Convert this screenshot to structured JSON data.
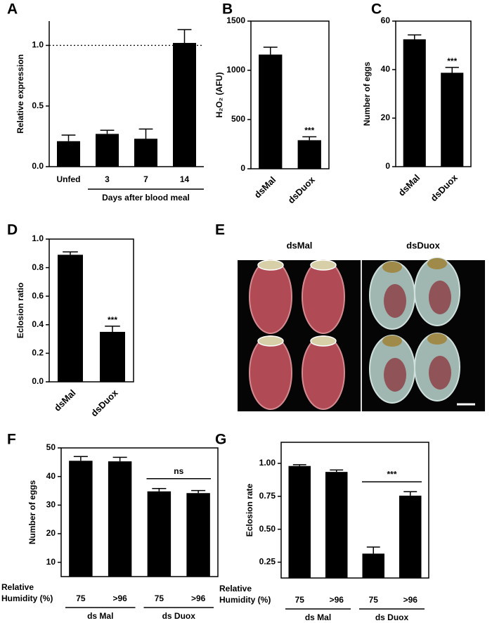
{
  "chart_data": [
    {
      "type": "bar",
      "panel_label": "A",
      "y_label": "Relative expression",
      "x_label": "Days after blood meal",
      "categories": [
        "Unfed",
        "3",
        "7",
        "14"
      ],
      "values": [
        0.21,
        0.27,
        0.23,
        1.02
      ],
      "errors": [
        0.05,
        0.03,
        0.08,
        0.11
      ],
      "color": "#000000",
      "ylim": [
        0,
        1.2
      ],
      "yticks": [
        {
          "value": 0,
          "label": "0.0"
        },
        {
          "value": 0.5,
          "label": "0.5"
        },
        {
          "value": 1,
          "label": "1.0"
        }
      ],
      "reference_line": 1
    },
    {
      "type": "bar",
      "panel_label": "B",
      "y_label": "H₂O₂ (AFU)",
      "categories": [
        "dsMal",
        "dsDuox"
      ],
      "values": [
        1160,
        290
      ],
      "errors": [
        75,
        35
      ],
      "annotations": [
        null,
        "***"
      ],
      "color": "#000000",
      "ylim": [
        0,
        1500
      ],
      "yticks": [
        0,
        500,
        1000,
        1500
      ]
    },
    {
      "type": "bar",
      "panel_label": "C",
      "y_label": "Number of eggs",
      "categories": [
        "dsMal",
        "dsDuox"
      ],
      "values": [
        52.5,
        38.7
      ],
      "errors": [
        1.8,
        2.2
      ],
      "annotations": [
        null,
        "***"
      ],
      "color": "#000000",
      "ylim": [
        0,
        60
      ],
      "yticks": [
        0,
        20,
        40,
        60
      ]
    },
    {
      "type": "bar",
      "panel_label": "D",
      "y_label": "Eclosion ratio",
      "categories": [
        "dsMal",
        "dsDuox"
      ],
      "values": [
        0.89,
        0.35
      ],
      "errors": [
        0.02,
        0.04
      ],
      "annotations": [
        null,
        "***"
      ],
      "color": "#000000",
      "ylim": [
        0,
        1
      ],
      "yticks": [
        {
          "value": 0,
          "label": "0.0"
        },
        {
          "value": 0.2,
          "label": "0.2"
        },
        {
          "value": 0.4,
          "label": "0.4"
        },
        {
          "value": 0.6,
          "label": "0.6"
        },
        {
          "value": 0.8,
          "label": "0.8"
        },
        {
          "value": 1,
          "label": "1.0"
        }
      ]
    },
    {
      "type": "image",
      "panel_label": "E",
      "labels": [
        "dsMal",
        "dsDuox"
      ]
    },
    {
      "type": "bar",
      "panel_label": "F",
      "y_label": "Number of eggs",
      "x_label_lines": [
        "Relative",
        "Humidity (%)"
      ],
      "categories": [
        "75",
        ">96",
        "75",
        ">96"
      ],
      "values": [
        45.5,
        45.3,
        34.8,
        34.2
      ],
      "errors": [
        1.5,
        1.4,
        1.0,
        0.9
      ],
      "groups": [
        {
          "name": "ds Mal",
          "annotation": null
        },
        {
          "name": "ds Duox",
          "annotation": "ns"
        }
      ],
      "color": "#000000",
      "ylim": [
        5,
        50
      ],
      "yticks": [
        10,
        20,
        30,
        40,
        50
      ]
    },
    {
      "type": "bar",
      "panel_label": "G",
      "y_label": "Eclosion rate",
      "x_label_lines": [
        "Relative",
        "Humidity (%)"
      ],
      "categories": [
        "75",
        ">96",
        "75",
        ">96"
      ],
      "values": [
        0.98,
        0.935,
        0.315,
        0.755
      ],
      "errors": [
        0.01,
        0.015,
        0.05,
        0.03
      ],
      "groups": [
        {
          "name": "ds Mal",
          "annotation": null
        },
        {
          "name": "ds Duox",
          "annotation": "***"
        }
      ],
      "color": "#000000",
      "ylim": [
        0.13,
        1.16
      ],
      "yticks": [
        {
          "value": 0.25,
          "label": "0.25"
        },
        {
          "value": 0.5,
          "label": "0.50"
        },
        {
          "value": 0.75,
          "label": "0.75"
        },
        {
          "value": 1,
          "label": "1.00"
        }
      ]
    }
  ]
}
